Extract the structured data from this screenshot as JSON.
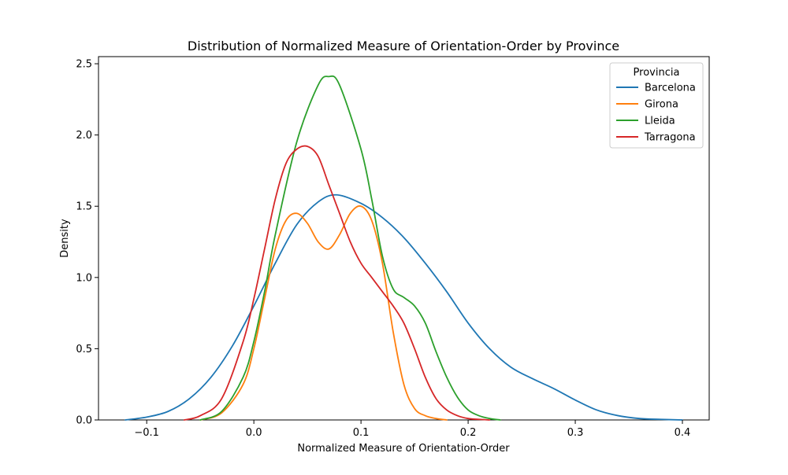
{
  "chart_data": {
    "type": "line",
    "subtype": "kde-density",
    "title": "Distribution of Normalized Measure of Orientation-Order by Province",
    "xlabel": "Normalized Measure of Orientation-Order",
    "ylabel": "Density",
    "xlim": [
      -0.145,
      0.425
    ],
    "ylim": [
      0,
      2.55
    ],
    "xticks": [
      -0.1,
      0.0,
      0.1,
      0.2,
      0.3,
      0.4
    ],
    "xtick_labels": [
      "−0.1",
      "0.0",
      "0.1",
      "0.2",
      "0.3",
      "0.4"
    ],
    "yticks": [
      0.0,
      0.5,
      1.0,
      1.5,
      2.0,
      2.5
    ],
    "ytick_labels": [
      "0.0",
      "0.5",
      "1.0",
      "1.5",
      "2.0",
      "2.5"
    ],
    "grid": false,
    "legend": {
      "title": "Provincia",
      "placement": "top-right"
    },
    "series": [
      {
        "name": "Barcelona",
        "color": "#1f77b4",
        "x": [
          -0.12,
          -0.1,
          -0.08,
          -0.06,
          -0.04,
          -0.02,
          0.0,
          0.02,
          0.04,
          0.06,
          0.077,
          0.1,
          0.12,
          0.14,
          0.16,
          0.18,
          0.2,
          0.22,
          0.24,
          0.26,
          0.28,
          0.3,
          0.32,
          0.34,
          0.36,
          0.38,
          0.4
        ],
        "y": [
          0.0,
          0.02,
          0.06,
          0.15,
          0.3,
          0.52,
          0.8,
          1.1,
          1.37,
          1.53,
          1.58,
          1.52,
          1.42,
          1.28,
          1.1,
          0.9,
          0.68,
          0.5,
          0.37,
          0.29,
          0.22,
          0.14,
          0.07,
          0.03,
          0.01,
          0.004,
          0.0
        ]
      },
      {
        "name": "Girona",
        "color": "#ff7f0e",
        "x": [
          -0.05,
          -0.03,
          -0.01,
          0.0,
          0.01,
          0.02,
          0.03,
          0.04,
          0.05,
          0.06,
          0.07,
          0.08,
          0.09,
          0.1,
          0.11,
          0.12,
          0.13,
          0.14,
          0.15,
          0.16,
          0.17,
          0.18
        ],
        "y": [
          0.0,
          0.05,
          0.25,
          0.5,
          0.85,
          1.2,
          1.4,
          1.45,
          1.38,
          1.25,
          1.2,
          1.3,
          1.45,
          1.5,
          1.4,
          1.1,
          0.62,
          0.25,
          0.08,
          0.03,
          0.01,
          0.0
        ]
      },
      {
        "name": "Lleida",
        "color": "#2ca02c",
        "x": [
          -0.05,
          -0.03,
          -0.01,
          0.0,
          0.01,
          0.02,
          0.04,
          0.06,
          0.07,
          0.08,
          0.1,
          0.11,
          0.12,
          0.13,
          0.14,
          0.15,
          0.16,
          0.17,
          0.18,
          0.19,
          0.2,
          0.21,
          0.22,
          0.23
        ],
        "y": [
          0.0,
          0.06,
          0.3,
          0.55,
          0.9,
          1.3,
          1.95,
          2.35,
          2.41,
          2.35,
          1.9,
          1.55,
          1.15,
          0.92,
          0.86,
          0.8,
          0.68,
          0.48,
          0.3,
          0.16,
          0.07,
          0.03,
          0.01,
          0.0
        ]
      },
      {
        "name": "Tarragona",
        "color": "#d62728",
        "x": [
          -0.065,
          -0.05,
          -0.03,
          -0.01,
          0.0,
          0.01,
          0.02,
          0.03,
          0.04,
          0.05,
          0.06,
          0.07,
          0.08,
          0.09,
          0.1,
          0.11,
          0.12,
          0.13,
          0.14,
          0.15,
          0.16,
          0.17,
          0.18,
          0.19,
          0.2,
          0.21,
          0.22
        ],
        "y": [
          0.0,
          0.03,
          0.15,
          0.55,
          0.85,
          1.2,
          1.55,
          1.8,
          1.9,
          1.92,
          1.85,
          1.65,
          1.45,
          1.25,
          1.1,
          1.0,
          0.9,
          0.8,
          0.68,
          0.5,
          0.3,
          0.15,
          0.07,
          0.03,
          0.01,
          0.004,
          0.0
        ]
      }
    ]
  }
}
